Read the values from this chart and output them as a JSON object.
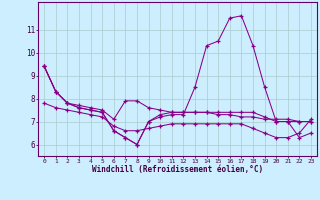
{
  "title": "",
  "xlabel": "Windchill (Refroidissement éolien,°C)",
  "ylabel": "",
  "bg_color": "#cceeff",
  "line_color": "#880088",
  "grid_color": "#aacccc",
  "hours": [
    0,
    1,
    2,
    3,
    4,
    5,
    6,
    7,
    8,
    9,
    10,
    11,
    12,
    13,
    14,
    15,
    16,
    17,
    18,
    19,
    20,
    21,
    22,
    23
  ],
  "series1": [
    9.4,
    8.3,
    7.8,
    7.6,
    7.5,
    7.4,
    6.6,
    6.3,
    6.0,
    7.0,
    7.2,
    7.3,
    7.3,
    8.5,
    10.3,
    10.5,
    11.5,
    11.6,
    10.3,
    8.5,
    7.0,
    7.0,
    6.3,
    6.5
  ],
  "series2": [
    9.4,
    8.3,
    7.8,
    7.7,
    7.6,
    7.5,
    7.1,
    7.9,
    7.9,
    7.6,
    7.5,
    7.4,
    7.4,
    7.4,
    7.4,
    7.3,
    7.3,
    7.2,
    7.2,
    7.1,
    7.1,
    7.1,
    7.0,
    7.0
  ],
  "series3": [
    7.8,
    7.6,
    7.5,
    7.4,
    7.3,
    7.2,
    6.8,
    6.6,
    6.6,
    6.7,
    6.8,
    6.9,
    6.9,
    6.9,
    6.9,
    6.9,
    6.9,
    6.9,
    6.7,
    6.5,
    6.3,
    6.3,
    6.5,
    7.1
  ],
  "series4": [
    9.4,
    8.3,
    7.8,
    7.6,
    7.5,
    7.4,
    6.6,
    6.3,
    6.0,
    7.0,
    7.3,
    7.4,
    7.4,
    7.4,
    7.4,
    7.4,
    7.4,
    7.4,
    7.4,
    7.2,
    7.0,
    7.0,
    7.0,
    7.0
  ],
  "ylim": [
    5.5,
    12.2
  ],
  "yticks": [
    6,
    7,
    8,
    9,
    10,
    11
  ],
  "xticks": [
    0,
    1,
    2,
    3,
    4,
    5,
    6,
    7,
    8,
    9,
    10,
    11,
    12,
    13,
    14,
    15,
    16,
    17,
    18,
    19,
    20,
    21,
    22,
    23
  ]
}
